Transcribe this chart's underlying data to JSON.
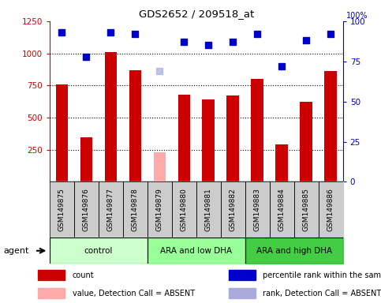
{
  "title": "GDS2652 / 209518_at",
  "samples": [
    "GSM149875",
    "GSM149876",
    "GSM149877",
    "GSM149878",
    "GSM149879",
    "GSM149880",
    "GSM149881",
    "GSM149882",
    "GSM149883",
    "GSM149884",
    "GSM149885",
    "GSM149886"
  ],
  "counts": [
    760,
    345,
    1010,
    870,
    null,
    675,
    640,
    670,
    800,
    290,
    620,
    860
  ],
  "counts_absent": [
    null,
    null,
    null,
    null,
    230,
    null,
    null,
    null,
    null,
    null,
    null,
    null
  ],
  "percentile_ranks": [
    93,
    78,
    93,
    92,
    null,
    87,
    85,
    87,
    92,
    72,
    88,
    92
  ],
  "ranks_absent": [
    null,
    null,
    null,
    null,
    69,
    null,
    null,
    null,
    null,
    null,
    null,
    null
  ],
  "bar_color": "#cc0000",
  "bar_absent_color": "#ffaaaa",
  "dot_color": "#0000cc",
  "dot_absent_color": "#aaaadd",
  "ylim_left": [
    0,
    1250
  ],
  "ylim_right": [
    0,
    100
  ],
  "yticks_left": [
    250,
    500,
    750,
    1000,
    1250
  ],
  "yticks_right": [
    0,
    25,
    50,
    75,
    100
  ],
  "groups": [
    {
      "label": "control",
      "start": 0,
      "end": 4,
      "color": "#ccffcc"
    },
    {
      "label": "ARA and low DHA",
      "start": 4,
      "end": 8,
      "color": "#99ff99"
    },
    {
      "label": "ARA and high DHA",
      "start": 8,
      "end": 12,
      "color": "#44cc44"
    }
  ],
  "agent_label": "agent",
  "legend_items": [
    {
      "label": "count",
      "color": "#cc0000"
    },
    {
      "label": "percentile rank within the sample",
      "color": "#0000cc"
    },
    {
      "label": "value, Detection Call = ABSENT",
      "color": "#ffaaaa"
    },
    {
      "label": "rank, Detection Call = ABSENT",
      "color": "#aaaadd"
    }
  ],
  "background_color": "#ffffff",
  "left_axis_color": "#cc0000",
  "right_axis_color": "#0000cc",
  "sample_box_color": "#cccccc",
  "bar_width": 0.5
}
